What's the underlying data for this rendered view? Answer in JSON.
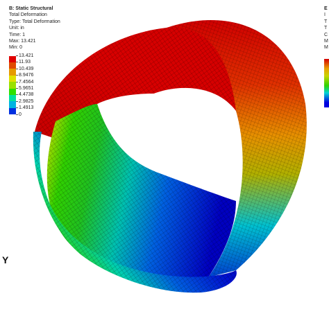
{
  "panel": {
    "title": "B: Static Structural",
    "result": "Total Deformation",
    "type": "Type: Total Deformation",
    "unit": "Unit: in",
    "time": "Time: 1",
    "max": "Max: 13.421",
    "min": "Min: 0"
  },
  "legend": [
    {
      "value": "13.421",
      "color": "#e00000"
    },
    {
      "value": "11.93",
      "color": "#e04a00"
    },
    {
      "value": "10.439",
      "color": "#e69a00"
    },
    {
      "value": "8.9476",
      "color": "#e0e000"
    },
    {
      "value": "7.4564",
      "color": "#9ae000"
    },
    {
      "value": "5.9651",
      "color": "#2ee000"
    },
    {
      "value": "4.4738",
      "color": "#00e0a0"
    },
    {
      "value": "2.9825",
      "color": "#00b4e0"
    },
    {
      "value": "1.4913",
      "color": "#0030e0"
    },
    {
      "value": "0",
      "color": "#0000b0"
    }
  ],
  "panel2": {
    "title": "E",
    "line2": "I",
    "line3": "T",
    "line4": "T",
    "line5": "C",
    "line6": "M",
    "line7": "M"
  },
  "axis": {
    "label": "Y"
  }
}
